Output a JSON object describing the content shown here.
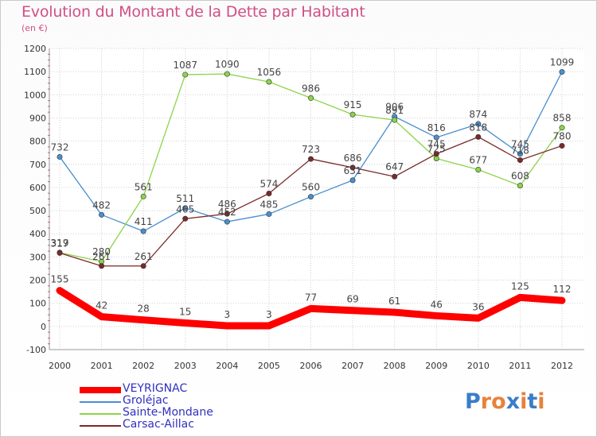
{
  "title": "Evolution du Montant de la Dette par Habitant",
  "subtitle": "(en €)",
  "brand": {
    "text": "Proxiti",
    "colors": [
      "#3a7dc8",
      "#e8823a",
      "#e8823a",
      "#3a7dc8",
      "#e8823a",
      "#3a7dc8",
      "#e8823a"
    ]
  },
  "chart_data": {
    "type": "line",
    "x": [
      "2000",
      "2001",
      "2002",
      "2003",
      "2004",
      "2005",
      "2006",
      "2007",
      "2008",
      "2009",
      "2010",
      "2011",
      "2012"
    ],
    "ylim": [
      -100,
      1200
    ],
    "yticks": [
      -100,
      0,
      100,
      200,
      300,
      400,
      500,
      600,
      700,
      800,
      900,
      1000,
      1100,
      1200
    ],
    "grid": true,
    "legend_position": "bottom-left",
    "series": [
      {
        "name": "Groléjac",
        "color": "#4a8fcf",
        "values": [
          732,
          482,
          411,
          511,
          452,
          485,
          560,
          631,
          906,
          816,
          874,
          745,
          1099
        ],
        "labels": [
          "732",
          "482",
          "411",
          "511",
          "452",
          "485",
          "560",
          "631",
          "906",
          "816",
          "874",
          "745",
          "1099"
        ]
      },
      {
        "name": "Sainte-Mondane",
        "color": "#8cd44a",
        "values": [
          319,
          280,
          561,
          1087,
          1090,
          1056,
          986,
          915,
          891,
          725,
          677,
          608,
          858
        ],
        "labels": [
          "319",
          "280",
          "561",
          "1087",
          "1090",
          "1056",
          "986",
          "915",
          "891",
          "725",
          "677",
          "608",
          "858"
        ]
      },
      {
        "name": "Carsac-Aillac",
        "color": "#7a2a2a",
        "values": [
          317,
          261,
          261,
          465,
          486,
          574,
          723,
          686,
          647,
          745,
          818,
          718,
          780
        ],
        "labels": [
          "317",
          "261",
          "261",
          "465",
          "486",
          "574",
          "723",
          "686",
          "647",
          "745",
          "818",
          "718",
          "780"
        ]
      },
      {
        "name": "VEYRIGNAC",
        "color": "#ff0000",
        "values": [
          155,
          42,
          28,
          15,
          3,
          3,
          77,
          69,
          61,
          46,
          36,
          125,
          112
        ],
        "labels": [
          "155",
          "42",
          "28",
          "15",
          "3",
          "3",
          "77",
          "69",
          "61",
          "46",
          "36",
          "125",
          "112"
        ]
      }
    ],
    "legend": [
      {
        "name": "VEYRIGNAC",
        "color": "#ff0000",
        "label_color": "#3030c0"
      },
      {
        "name": "Groléjac",
        "color": "#4a8fcf",
        "label_color": "#3030c0"
      },
      {
        "name": "Sainte-Mondane",
        "color": "#8cd44a",
        "label_color": "#3030c0"
      },
      {
        "name": "Carsac-Aillac",
        "color": "#7a2a2a",
        "label_color": "#3030c0"
      }
    ]
  }
}
